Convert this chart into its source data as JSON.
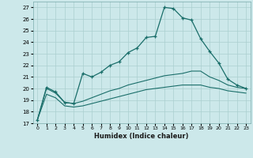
{
  "xlabel": "Humidex (Indice chaleur)",
  "bg_color": "#cce8ea",
  "grid_color": "#aacfcf",
  "line_color": "#1a6e6a",
  "xlim": [
    -0.5,
    23.5
  ],
  "ylim": [
    17,
    27.5
  ],
  "xticks": [
    0,
    1,
    2,
    3,
    4,
    5,
    6,
    7,
    8,
    9,
    10,
    11,
    12,
    13,
    14,
    15,
    16,
    17,
    18,
    19,
    20,
    21,
    22,
    23
  ],
  "yticks": [
    17,
    18,
    19,
    20,
    21,
    22,
    23,
    24,
    25,
    26,
    27
  ],
  "line1_x": [
    0,
    1,
    2,
    3,
    4,
    5,
    6,
    7,
    8,
    9,
    10,
    11,
    12,
    13,
    14,
    15,
    16,
    17,
    18,
    19,
    20,
    21,
    22,
    23
  ],
  "line1_y": [
    17.3,
    20.1,
    19.7,
    18.8,
    18.7,
    21.3,
    21.0,
    21.4,
    22.0,
    22.3,
    23.1,
    23.5,
    24.4,
    24.5,
    27.0,
    26.9,
    26.1,
    25.9,
    24.3,
    23.2,
    22.2,
    20.8,
    20.3,
    20.0
  ],
  "line2_x": [
    0,
    1,
    2,
    3,
    4,
    5,
    6,
    7,
    8,
    9,
    10,
    11,
    12,
    13,
    14,
    15,
    16,
    17,
    18,
    19,
    20,
    21,
    22,
    23
  ],
  "line2_y": [
    17.3,
    20.0,
    19.6,
    18.8,
    18.7,
    18.9,
    19.2,
    19.5,
    19.8,
    20.0,
    20.3,
    20.5,
    20.7,
    20.9,
    21.1,
    21.2,
    21.3,
    21.5,
    21.5,
    21.0,
    20.7,
    20.3,
    20.1,
    20.0
  ],
  "line3_x": [
    0,
    1,
    2,
    3,
    4,
    5,
    6,
    7,
    8,
    9,
    10,
    11,
    12,
    13,
    14,
    15,
    16,
    17,
    18,
    19,
    20,
    21,
    22,
    23
  ],
  "line3_y": [
    17.3,
    19.5,
    19.2,
    18.5,
    18.4,
    18.5,
    18.7,
    18.9,
    19.1,
    19.3,
    19.5,
    19.7,
    19.9,
    20.0,
    20.1,
    20.2,
    20.3,
    20.3,
    20.3,
    20.1,
    20.0,
    19.8,
    19.7,
    19.6
  ]
}
